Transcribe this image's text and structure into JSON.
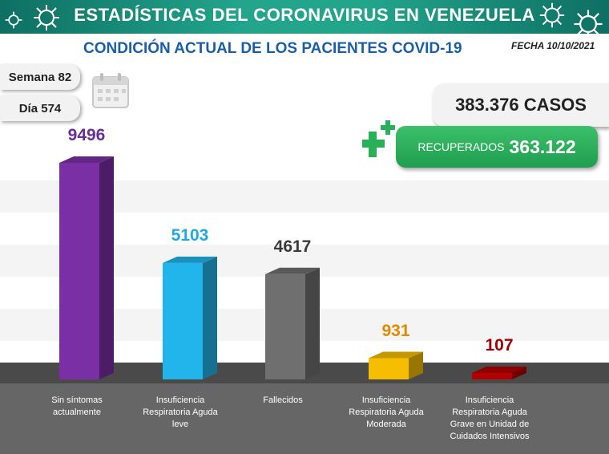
{
  "banner": {
    "title": "ESTADÍSTICAS DEL CORONAVIRUS EN VENEZUELA"
  },
  "subtitle": "CONDICIÓN ACTUAL DE LOS PACIENTES COVID-19",
  "date": "FECHA 10/10/2021",
  "week": "Semana 82",
  "day": "Día 574",
  "cases": "383.376 CASOS",
  "recovered": {
    "label": "RECUPERADOS",
    "value": "363.122"
  },
  "colors": {
    "banner": "#1c9b83",
    "subtitle": "#1a5ea8",
    "recovered": "#2bb05a",
    "floor": "#666666"
  },
  "icons": [
    "virus-icon",
    "calendar-icon",
    "plus-icon"
  ],
  "chart_data": {
    "type": "bar",
    "categories": [
      "Sin síntomas actualmente",
      "Insuficiencia Respiratoria Aguda leve",
      "Fallecidos",
      "Insuficiencia Respiratoria Aguda Moderada",
      "Insuficiencia Respiratoria Aguda Grave en Unidad de Cuidados Intensivos"
    ],
    "category_lines": [
      [
        "Sin síntomas",
        "actualmente"
      ],
      [
        "Insuficiencia",
        "Respiratoria Aguda",
        "leve"
      ],
      [
        "Fallecidos"
      ],
      [
        "Insuficiencia",
        "Respiratoria Aguda",
        "Moderada"
      ],
      [
        "Insuficiencia",
        "Respiratoria Aguda",
        "Grave en Unidad de",
        "Cuidados Intensivos"
      ]
    ],
    "values": [
      9496,
      5103,
      4617,
      931,
      107
    ],
    "value_labels": [
      "9496",
      "5103",
      "4617",
      "931",
      "107"
    ],
    "colors": [
      "#7b2fa5",
      "#22b5ec",
      "#6f6f6f",
      "#f5be00",
      "#b30000"
    ],
    "label_colors": [
      "#6a2c96",
      "#22a8e0",
      "#3a3a3a",
      "#e08a00",
      "#a30000"
    ],
    "grid": false,
    "legend": "none"
  }
}
